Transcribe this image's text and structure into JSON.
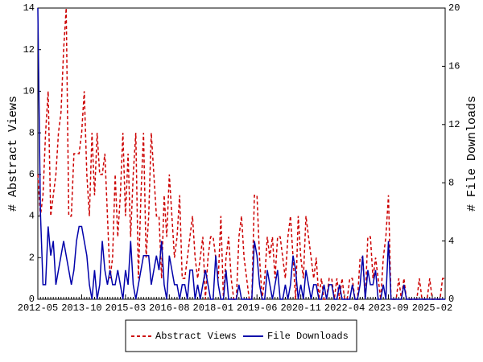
{
  "chart_data": {
    "type": "line",
    "y_label": "# Abstract Views",
    "y2_label": "# File Downloads",
    "categories": [
      "2012-05",
      null,
      null,
      null,
      null,
      null,
      null,
      null,
      null,
      null,
      null,
      null,
      null,
      null,
      null,
      null,
      null,
      "2013-10",
      null,
      null,
      null,
      null,
      null,
      null,
      null,
      null,
      null,
      null,
      null,
      null,
      null,
      null,
      null,
      null,
      "2015-03",
      null,
      null,
      null,
      null,
      null,
      null,
      null,
      null,
      null,
      null,
      null,
      null,
      null,
      null,
      null,
      null,
      "2016-08",
      null,
      null,
      null,
      null,
      null,
      null,
      null,
      null,
      null,
      null,
      null,
      null,
      null,
      null,
      null,
      null,
      "2018-01",
      null,
      null,
      null,
      null,
      null,
      null,
      null,
      null,
      null,
      null,
      null,
      null,
      null,
      null,
      null,
      null,
      "2019-06",
      null,
      null,
      null,
      null,
      null,
      null,
      null,
      null,
      null,
      null,
      null,
      null,
      null,
      null,
      null,
      null,
      "2020-11",
      null,
      null,
      null,
      null,
      null,
      null,
      null,
      null,
      null,
      null,
      null,
      null,
      null,
      null,
      null,
      null,
      "2022-04",
      null,
      null,
      null,
      null,
      null,
      null,
      null,
      null,
      null,
      null,
      null,
      null,
      null,
      null,
      null,
      null,
      "2023-09",
      null,
      null,
      null,
      null,
      null,
      null,
      null,
      null,
      null,
      null,
      null,
      null,
      null,
      null,
      null,
      null,
      "2025-02",
      null,
      null,
      null,
      null,
      null
    ],
    "series": [
      {
        "name": "Abstract Views",
        "color": "#cc0000",
        "dashed": true,
        "values": [
          6,
          4,
          5,
          8,
          10,
          4,
          5,
          6,
          8,
          9,
          12,
          14,
          4,
          4,
          7,
          7,
          7,
          8,
          10,
          6,
          4,
          8,
          5,
          8,
          6,
          6,
          7,
          4,
          1,
          2,
          6,
          3,
          5,
          8,
          4,
          7,
          3,
          6,
          8,
          1,
          5,
          8,
          2,
          4,
          8,
          6,
          4,
          4,
          1,
          5,
          3,
          6,
          4,
          2,
          3,
          5,
          1,
          1,
          2,
          3,
          4,
          2,
          1,
          2,
          3,
          0,
          2,
          3,
          3,
          2,
          1,
          4,
          0,
          2,
          3,
          1,
          0,
          0,
          3,
          4,
          2,
          1,
          0,
          0,
          5,
          5,
          2,
          0,
          1,
          3,
          2,
          3,
          1,
          3,
          3,
          2,
          1,
          3,
          4,
          2,
          0,
          4,
          2,
          1,
          4,
          3,
          2,
          1,
          2,
          0,
          1,
          0,
          0,
          1,
          1,
          0,
          1,
          0,
          1,
          0,
          0,
          1,
          1,
          0,
          0,
          2,
          2,
          0,
          3,
          3,
          1,
          2,
          1,
          0,
          2,
          3,
          5,
          0,
          0,
          0,
          1,
          0,
          1,
          0,
          0,
          0,
          0,
          0,
          1,
          0,
          0,
          0,
          1,
          0,
          0,
          0,
          0,
          1,
          1
        ]
      },
      {
        "name": "File Downloads",
        "color": "#0000aa",
        "dashed": false,
        "axis": "y2",
        "values": [
          20,
          6,
          1,
          1,
          5,
          3,
          4,
          1,
          2,
          3,
          4,
          3,
          2,
          1,
          2,
          4,
          5,
          5,
          4,
          3,
          1,
          0,
          2,
          0,
          1,
          4,
          2,
          1,
          2,
          1,
          1,
          2,
          1,
          0,
          2,
          1,
          4,
          1,
          0,
          1,
          2,
          3,
          3,
          3,
          1,
          2,
          3,
          2,
          4,
          1,
          0,
          3,
          2,
          1,
          1,
          0,
          1,
          1,
          0,
          2,
          2,
          0,
          1,
          0,
          1,
          2,
          1,
          0,
          0,
          3,
          1,
          0,
          0,
          2,
          0,
          0,
          0,
          0,
          1,
          0,
          0,
          0,
          0,
          0,
          4,
          3,
          1,
          0,
          0,
          2,
          1,
          0,
          1,
          2,
          0,
          0,
          1,
          0,
          1,
          3,
          2,
          0,
          1,
          0,
          2,
          1,
          0,
          1,
          1,
          0,
          0,
          1,
          0,
          1,
          1,
          0,
          0,
          1,
          0,
          0,
          0,
          0,
          1,
          0,
          0,
          1,
          3,
          0,
          2,
          1,
          1,
          2,
          0,
          0,
          1,
          0,
          4,
          0,
          0,
          0,
          0,
          0,
          1,
          0,
          0,
          0,
          0,
          0,
          0,
          0,
          0,
          0,
          0,
          0,
          0,
          0,
          0,
          0,
          0
        ]
      }
    ],
    "ylim": [
      0,
      14
    ],
    "yticks": [
      0,
      2,
      4,
      6,
      8,
      10,
      12,
      14
    ],
    "y2lim": [
      0,
      20
    ],
    "y2ticks": [
      0,
      4,
      8,
      12,
      16,
      20
    ]
  }
}
